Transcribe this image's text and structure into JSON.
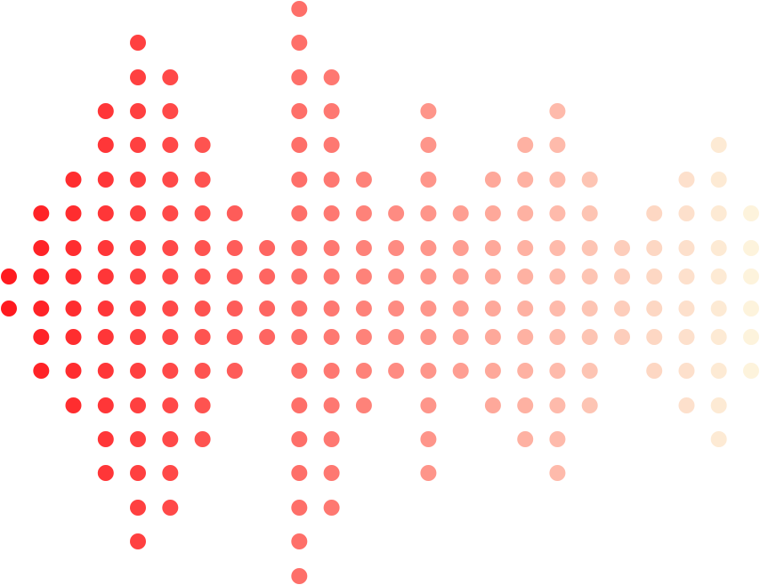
{
  "graphic": {
    "description_kind": "dot-matrix sound wave",
    "column_levels": [
      1,
      3,
      4,
      6,
      8,
      7,
      5,
      3,
      2,
      9,
      7,
      4,
      3,
      6,
      3,
      4,
      5,
      6,
      4,
      2,
      3,
      4,
      5,
      3
    ],
    "colors": {
      "start": "#ff1a1f",
      "end": "#fdf3dc"
    }
  }
}
